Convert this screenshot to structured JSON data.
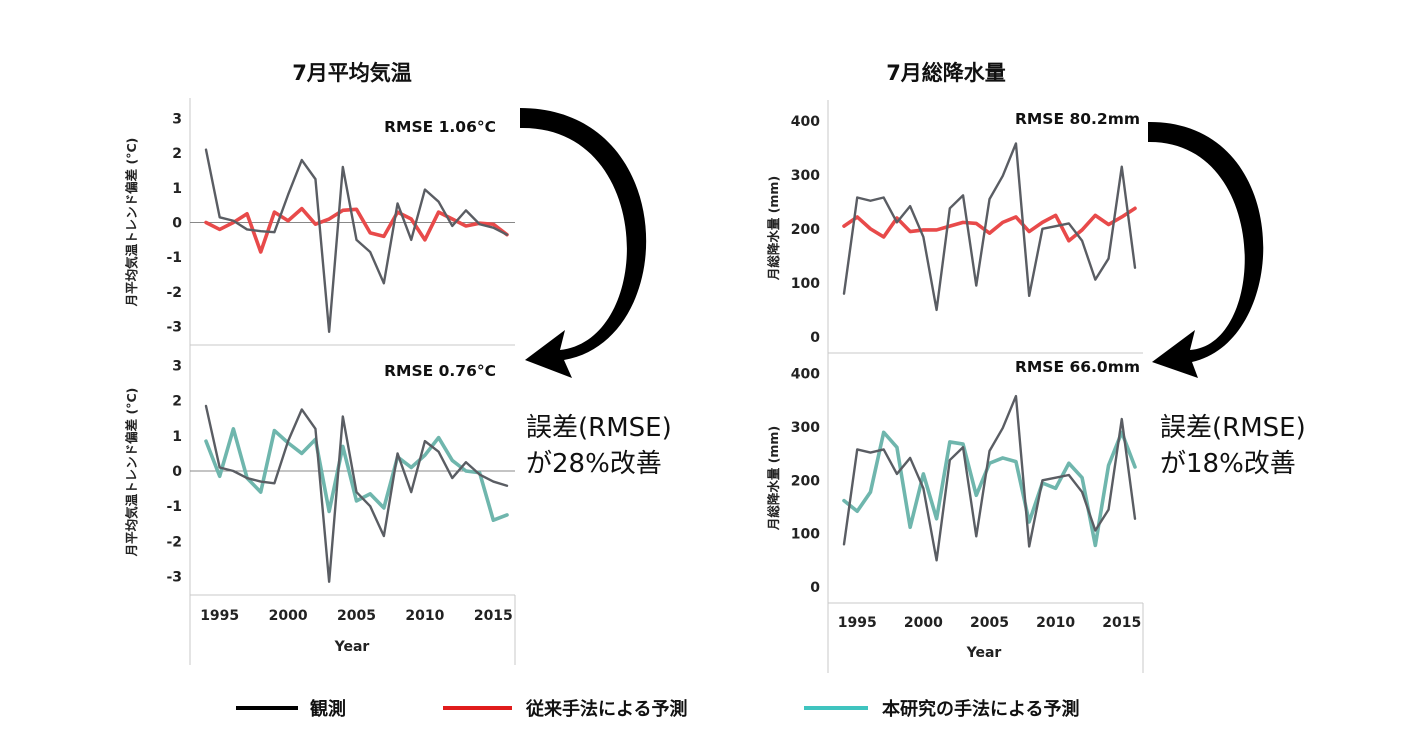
{
  "colors": {
    "observed": "#5a5d63",
    "conventional": "#e84a4a",
    "proposed": "#6fb6ad",
    "arrow": "#000000",
    "axis": "#c8c8c8",
    "zeroline": "#888888"
  },
  "legend": [
    {
      "label": "観測",
      "color": "#000000"
    },
    {
      "label": "従来手法による予測",
      "color": "#e01c1c"
    },
    {
      "label": "本研究の手法による予測",
      "color": "#3fc4bf"
    }
  ],
  "temperature": {
    "title": "7月平均気温",
    "ylabel": "月平均気温トレンド偏差 (°C)",
    "xlabel": "Year",
    "improvement_line1": "誤差(RMSE)",
    "improvement_line2": "が28%改善",
    "top_rmse": "RMSE 1.06°C",
    "bottom_rmse": "RMSE 0.76°C",
    "yticks": [
      "3",
      "2",
      "1",
      "0",
      "-1",
      "-2",
      "-3"
    ],
    "xticks": [
      "1995",
      "2000",
      "2005",
      "2010",
      "2015"
    ]
  },
  "precipitation": {
    "title": "7月総降水量",
    "ylabel": "月総降水量 (mm)",
    "xlabel": "Year",
    "improvement_line1": "誤差(RMSE)",
    "improvement_line2": "が18%改善",
    "top_rmse": "RMSE 80.2mm",
    "bottom_rmse": "RMSE 66.0mm",
    "yticks": [
      "400",
      "300",
      "200",
      "100",
      "0"
    ],
    "xticks": [
      "1995",
      "2000",
      "2005",
      "2010",
      "2015"
    ]
  },
  "chart_data": [
    {
      "type": "line",
      "title": "7月平均気温",
      "ylabel": "月平均気温トレンド偏差 (°C)",
      "xlabel": "",
      "annotation": "RMSE 1.06°C",
      "ylim": [
        -3.3,
        3.3
      ],
      "x": [
        1994,
        1995,
        1996,
        1997,
        1998,
        1999,
        2000,
        2001,
        2002,
        2003,
        2004,
        2005,
        2006,
        2007,
        2008,
        2009,
        2010,
        2011,
        2012,
        2013,
        2014,
        2015,
        2016
      ],
      "series": [
        {
          "name": "観測",
          "values": [
            2.1,
            0.15,
            0.05,
            -0.2,
            -0.25,
            -0.28,
            0.8,
            1.8,
            1.25,
            -3.15,
            1.6,
            -0.5,
            -0.85,
            -1.75,
            0.55,
            -0.5,
            0.95,
            0.6,
            -0.1,
            0.35,
            -0.05,
            -0.15,
            -0.35
          ]
        },
        {
          "name": "従来手法による予測",
          "values": [
            0.0,
            -0.2,
            0.0,
            0.25,
            -0.85,
            0.3,
            0.05,
            0.4,
            -0.05,
            0.1,
            0.35,
            0.38,
            -0.3,
            -0.4,
            0.3,
            0.1,
            -0.5,
            0.3,
            0.1,
            -0.1,
            -0.02,
            -0.05,
            -0.35
          ]
        }
      ]
    },
    {
      "type": "line",
      "title": "",
      "ylabel": "月平均気温トレンド偏差 (°C)",
      "xlabel": "Year",
      "annotation": "RMSE 0.76°C",
      "ylim": [
        -3.3,
        3.3
      ],
      "x": [
        1994,
        1995,
        1996,
        1997,
        1998,
        1999,
        2000,
        2001,
        2002,
        2003,
        2004,
        2005,
        2006,
        2007,
        2008,
        2009,
        2010,
        2011,
        2012,
        2013,
        2014,
        2015,
        2016
      ],
      "series": [
        {
          "name": "観測",
          "values": [
            1.85,
            0.1,
            0.0,
            -0.2,
            -0.3,
            -0.35,
            0.85,
            1.75,
            1.2,
            -3.15,
            1.55,
            -0.6,
            -1.0,
            -1.85,
            0.5,
            -0.6,
            0.85,
            0.55,
            -0.2,
            0.25,
            -0.1,
            -0.3,
            -0.42
          ]
        },
        {
          "name": "本研究の手法による予測",
          "values": [
            0.85,
            -0.15,
            1.2,
            -0.2,
            -0.6,
            1.15,
            0.8,
            0.5,
            0.9,
            -1.15,
            0.7,
            -0.85,
            -0.65,
            -1.05,
            0.4,
            0.1,
            0.45,
            0.95,
            0.3,
            0.0,
            -0.05,
            -1.4,
            -1.25
          ]
        }
      ]
    },
    {
      "type": "line",
      "title": "7月総降水量",
      "ylabel": "月総降水量 (mm)",
      "xlabel": "",
      "annotation": "RMSE 80.2mm",
      "ylim": [
        -15,
        420
      ],
      "x": [
        1994,
        1995,
        1996,
        1997,
        1998,
        1999,
        2000,
        2001,
        2002,
        2003,
        2004,
        2005,
        2006,
        2007,
        2008,
        2009,
        2010,
        2011,
        2012,
        2013,
        2014,
        2015,
        2016
      ],
      "series": [
        {
          "name": "観測",
          "values": [
            80,
            258,
            252,
            258,
            212,
            242,
            185,
            50,
            238,
            262,
            95,
            255,
            298,
            358,
            76,
            200,
            205,
            210,
            178,
            106,
            145,
            315,
            128
          ]
        },
        {
          "name": "従来手法による予測",
          "values": [
            205,
            222,
            200,
            185,
            220,
            195,
            198,
            198,
            205,
            212,
            210,
            192,
            212,
            222,
            195,
            212,
            225,
            178,
            198,
            225,
            208,
            222,
            238
          ]
        }
      ]
    },
    {
      "type": "line",
      "title": "",
      "ylabel": "月総降水量 (mm)",
      "xlabel": "Year",
      "annotation": "RMSE 66.0mm",
      "ylim": [
        -15,
        420
      ],
      "x": [
        1994,
        1995,
        1996,
        1997,
        1998,
        1999,
        2000,
        2001,
        2002,
        2003,
        2004,
        2005,
        2006,
        2007,
        2008,
        2009,
        2010,
        2011,
        2012,
        2013,
        2014,
        2015,
        2016
      ],
      "series": [
        {
          "name": "観測",
          "values": [
            80,
            258,
            252,
            258,
            212,
            242,
            185,
            50,
            238,
            262,
            95,
            255,
            298,
            358,
            76,
            200,
            205,
            210,
            178,
            106,
            145,
            315,
            128
          ]
        },
        {
          "name": "本研究の手法による予測",
          "values": [
            162,
            142,
            178,
            290,
            262,
            112,
            212,
            128,
            272,
            268,
            172,
            232,
            242,
            235,
            122,
            195,
            185,
            232,
            205,
            78,
            228,
            290,
            225
          ]
        }
      ]
    }
  ]
}
